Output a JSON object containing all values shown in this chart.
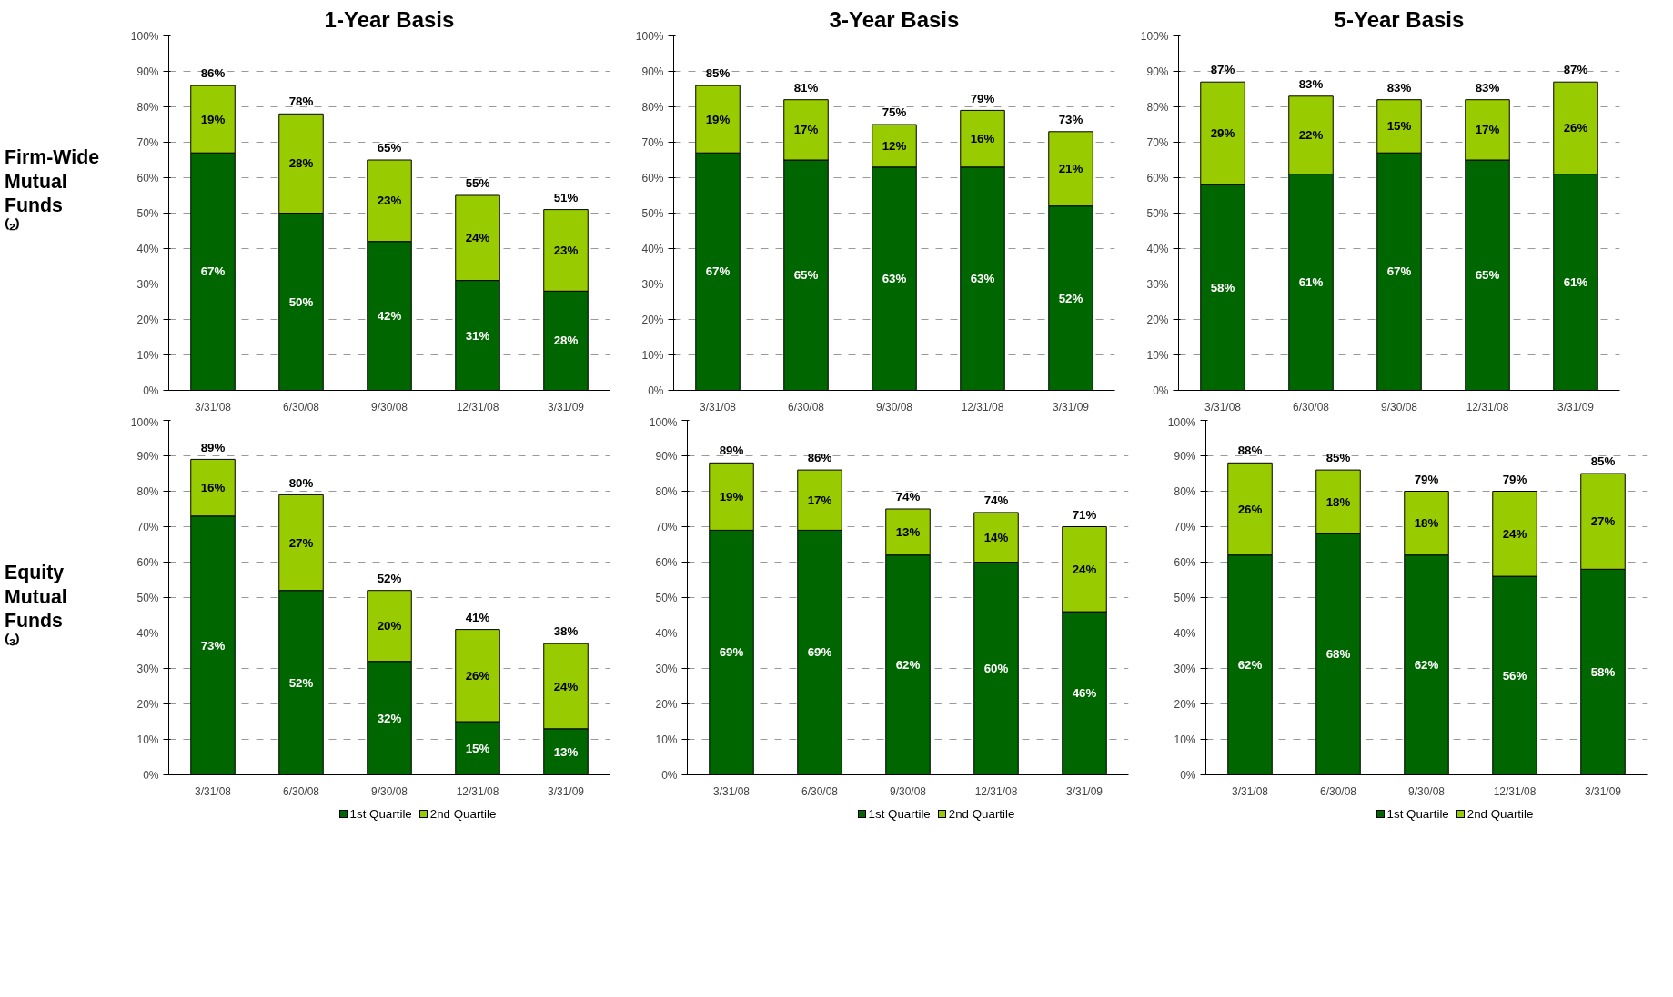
{
  "chart_data": [
    {
      "type": "bar",
      "title": "1-Year Basis",
      "stacked": true,
      "categories": [
        "3/31/08",
        "6/30/08",
        "9/30/08",
        "12/31/08",
        "3/31/09"
      ],
      "series": [
        {
          "color": "#006600",
          "values": [
            67,
            50,
            42,
            31,
            28
          ],
          "value_labels": [
            "67%",
            "50%",
            "42%",
            "31%",
            "28%"
          ]
        },
        {
          "color": "#99cc00",
          "values": [
            19,
            28,
            23,
            24,
            23
          ],
          "value_labels": [
            "19%",
            "28%",
            "23%",
            "24%",
            "23%"
          ]
        }
      ],
      "totals": [
        "86%",
        "78%",
        "65%",
        "55%",
        "51%"
      ],
      "ylim": [
        0,
        100
      ],
      "yticks": [
        {
          "value": 0,
          "label": "0%"
        },
        {
          "value": 10,
          "label": "10%"
        },
        {
          "value": 20,
          "label": "20%"
        },
        {
          "value": 30,
          "label": "30%"
        },
        {
          "value": 40,
          "label": "40%"
        },
        {
          "value": 50,
          "label": "50%"
        },
        {
          "value": 60,
          "label": "60%"
        },
        {
          "value": 70,
          "label": "70%"
        },
        {
          "value": 80,
          "label": "80%"
        },
        {
          "value": 90,
          "label": "90%"
        },
        {
          "value": 100,
          "label": "100%"
        }
      ],
      "grid": "y",
      "annotations": [
        "Firm-Wide Mutual Funds ⁽²⁾"
      ]
    },
    {
      "type": "bar",
      "title": "3-Year Basis",
      "stacked": true,
      "categories": [
        "3/31/08",
        "6/30/08",
        "9/30/08",
        "12/31/08",
        "3/31/09"
      ],
      "series": [
        {
          "color": "#006600",
          "values": [
            67,
            65,
            63,
            63,
            52
          ],
          "value_labels": [
            "67%",
            "65%",
            "63%",
            "63%",
            "52%"
          ]
        },
        {
          "color": "#99cc00",
          "values": [
            19,
            17,
            12,
            16,
            21
          ],
          "value_labels": [
            "19%",
            "17%",
            "12%",
            "16%",
            "21%"
          ]
        }
      ],
      "totals": [
        "85%",
        "81%",
        "75%",
        "79%",
        "73%"
      ],
      "ylim": [
        0,
        100
      ],
      "yticks": [
        {
          "value": 0,
          "label": "0%"
        },
        {
          "value": 10,
          "label": "10%"
        },
        {
          "value": 20,
          "label": "20%"
        },
        {
          "value": 30,
          "label": "30%"
        },
        {
          "value": 40,
          "label": "40%"
        },
        {
          "value": 50,
          "label": "50%"
        },
        {
          "value": 60,
          "label": "60%"
        },
        {
          "value": 70,
          "label": "70%"
        },
        {
          "value": 80,
          "label": "80%"
        },
        {
          "value": 90,
          "label": "90%"
        },
        {
          "value": 100,
          "label": "100%"
        }
      ],
      "grid": "y"
    },
    {
      "type": "bar",
      "title": "5-Year Basis",
      "stacked": true,
      "categories": [
        "3/31/08",
        "6/30/08",
        "9/30/08",
        "12/31/08",
        "3/31/09"
      ],
      "series": [
        {
          "color": "#006600",
          "values": [
            58,
            61,
            67,
            65,
            61
          ],
          "value_labels": [
            "58%",
            "61%",
            "67%",
            "65%",
            "61%"
          ]
        },
        {
          "color": "#99cc00",
          "values": [
            29,
            22,
            15,
            17,
            26
          ],
          "value_labels": [
            "29%",
            "22%",
            "15%",
            "17%",
            "26%"
          ]
        }
      ],
      "totals": [
        "87%",
        "83%",
        "83%",
        "83%",
        "87%"
      ],
      "ylim": [
        0,
        100
      ],
      "yticks": [
        {
          "value": 0,
          "label": "0%"
        },
        {
          "value": 10,
          "label": "10%"
        },
        {
          "value": 20,
          "label": "20%"
        },
        {
          "value": 30,
          "label": "30%"
        },
        {
          "value": 40,
          "label": "40%"
        },
        {
          "value": 50,
          "label": "50%"
        },
        {
          "value": 60,
          "label": "60%"
        },
        {
          "value": 70,
          "label": "70%"
        },
        {
          "value": 80,
          "label": "80%"
        },
        {
          "value": 90,
          "label": "90%"
        },
        {
          "value": 100,
          "label": "100%"
        }
      ],
      "grid": "y"
    },
    {
      "type": "bar",
      "stacked": true,
      "categories": [
        "3/31/08",
        "6/30/08",
        "9/30/08",
        "12/31/08",
        "3/31/09"
      ],
      "series": [
        {
          "name": "1st Quartile",
          "color": "#006600",
          "values": [
            73,
            52,
            32,
            15,
            13
          ],
          "value_labels": [
            "73%",
            "52%",
            "32%",
            "15%",
            "13%"
          ]
        },
        {
          "name": "2nd Quartile",
          "color": "#99cc00",
          "values": [
            16,
            27,
            20,
            26,
            24
          ],
          "value_labels": [
            "16%",
            "27%",
            "20%",
            "26%",
            "24%"
          ]
        }
      ],
      "totals": [
        "89%",
        "80%",
        "52%",
        "41%",
        "38%"
      ],
      "ylim": [
        0,
        100
      ],
      "yticks": [
        {
          "value": 0,
          "label": "0%"
        },
        {
          "value": 10,
          "label": "10%"
        },
        {
          "value": 20,
          "label": "20%"
        },
        {
          "value": 30,
          "label": "30%"
        },
        {
          "value": 40,
          "label": "40%"
        },
        {
          "value": 50,
          "label": "50%"
        },
        {
          "value": 60,
          "label": "60%"
        },
        {
          "value": 70,
          "label": "70%"
        },
        {
          "value": 80,
          "label": "80%"
        },
        {
          "value": 90,
          "label": "90%"
        },
        {
          "value": 100,
          "label": "100%"
        }
      ],
      "grid": "y",
      "legend": "bottom",
      "annotations": [
        "Equity Mutual Funds ⁽³⁾"
      ]
    },
    {
      "type": "bar",
      "stacked": true,
      "categories": [
        "3/31/08",
        "6/30/08",
        "9/30/08",
        "12/31/08",
        "3/31/09"
      ],
      "series": [
        {
          "name": "1st Quartile",
          "color": "#006600",
          "values": [
            69,
            69,
            62,
            60,
            46
          ],
          "value_labels": [
            "69%",
            "69%",
            "62%",
            "60%",
            "46%"
          ]
        },
        {
          "name": "2nd Quartile",
          "color": "#99cc00",
          "values": [
            19,
            17,
            13,
            14,
            24
          ],
          "value_labels": [
            "19%",
            "17%",
            "13%",
            "14%",
            "24%"
          ]
        }
      ],
      "totals": [
        "89%",
        "86%",
        "74%",
        "74%",
        "71%"
      ],
      "ylim": [
        0,
        100
      ],
      "yticks": [
        {
          "value": 0,
          "label": "0%"
        },
        {
          "value": 10,
          "label": "10%"
        },
        {
          "value": 20,
          "label": "20%"
        },
        {
          "value": 30,
          "label": "30%"
        },
        {
          "value": 40,
          "label": "40%"
        },
        {
          "value": 50,
          "label": "50%"
        },
        {
          "value": 60,
          "label": "60%"
        },
        {
          "value": 70,
          "label": "70%"
        },
        {
          "value": 80,
          "label": "80%"
        },
        {
          "value": 90,
          "label": "90%"
        },
        {
          "value": 100,
          "label": "100%"
        }
      ],
      "grid": "y",
      "legend": "bottom"
    },
    {
      "type": "bar",
      "stacked": true,
      "categories": [
        "3/31/08",
        "6/30/08",
        "9/30/08",
        "12/31/08",
        "3/31/09"
      ],
      "series": [
        {
          "name": "1st Quartile",
          "color": "#006600",
          "values": [
            62,
            68,
            62,
            56,
            58
          ],
          "value_labels": [
            "62%",
            "68%",
            "62%",
            "56%",
            "58%"
          ]
        },
        {
          "name": "2nd Quartile",
          "color": "#99cc00",
          "values": [
            26,
            18,
            18,
            24,
            27
          ],
          "value_labels": [
            "26%",
            "18%",
            "18%",
            "24%",
            "27%"
          ]
        }
      ],
      "totals": [
        "88%",
        "85%",
        "79%",
        "79%",
        "85%"
      ],
      "ylim": [
        0,
        100
      ],
      "yticks": [
        {
          "value": 0,
          "label": "0%"
        },
        {
          "value": 10,
          "label": "10%"
        },
        {
          "value": 20,
          "label": "20%"
        },
        {
          "value": 30,
          "label": "30%"
        },
        {
          "value": 40,
          "label": "40%"
        },
        {
          "value": 50,
          "label": "50%"
        },
        {
          "value": 60,
          "label": "60%"
        },
        {
          "value": 70,
          "label": "70%"
        },
        {
          "value": 80,
          "label": "80%"
        },
        {
          "value": 90,
          "label": "90%"
        },
        {
          "value": 100,
          "label": "100%"
        }
      ],
      "grid": "y",
      "legend": "bottom"
    }
  ]
}
